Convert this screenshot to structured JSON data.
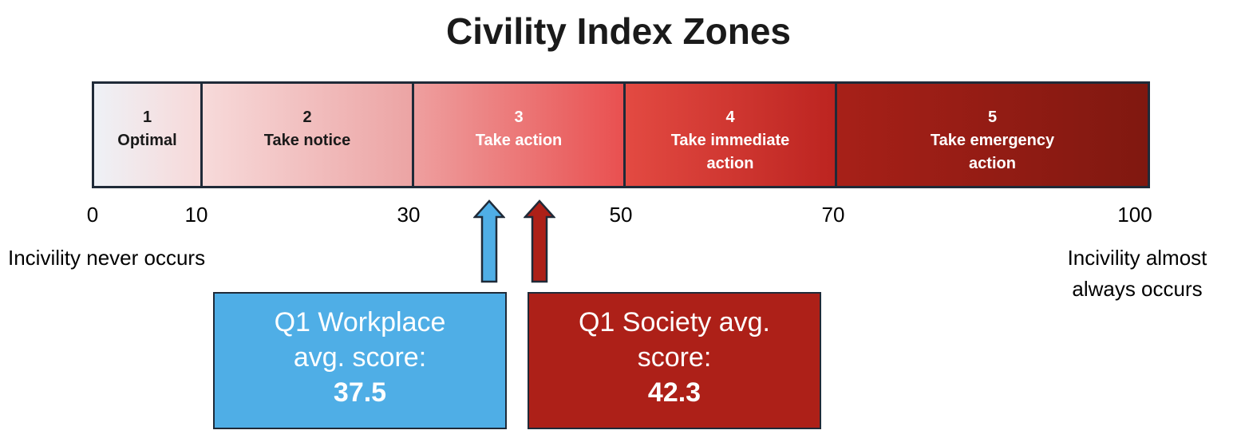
{
  "title": "Civility Index Zones",
  "zones": [
    {
      "number": "1",
      "label": "Optimal"
    },
    {
      "number": "2",
      "label": "Take notice"
    },
    {
      "number": "3",
      "label": "Take action"
    },
    {
      "number": "4",
      "label": "Take immediate action"
    },
    {
      "number": "5",
      "label": "Take emergency action"
    }
  ],
  "ticks": [
    "0",
    "10",
    "30",
    "50",
    "70",
    "100"
  ],
  "scale_min": 0,
  "scale_max": 100,
  "left_label": "Incivility never occurs",
  "right_label": "Incivility almost always occurs",
  "workplace": {
    "label_line1": "Q1 Workplace",
    "label_line2": "avg. score:",
    "value": "37.5",
    "score": 37.5,
    "color": "#4faee6"
  },
  "society": {
    "label_line1": "Q1 Society avg.",
    "label_line2": "score:",
    "value": "42.3",
    "score": 42.3,
    "color": "#ad2018"
  }
}
